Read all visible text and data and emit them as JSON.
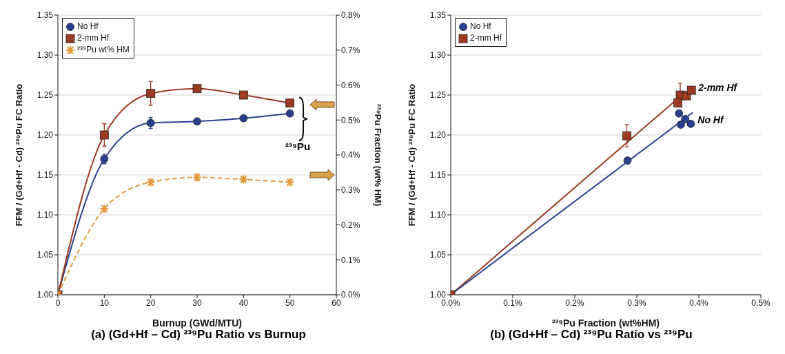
{
  "chart_data": [
    {
      "type": "line",
      "title": "(a)  (Gd+Hf – Cd) ²³⁹Pu Ratio vs Burnup",
      "xlabel": "Burnup (GWd/MTU)",
      "ylabel": "FFM / (Gd+Hf - Cd) ²³⁹Pu FC Ratio",
      "y2label": "²³⁹Pu Fraction (wt% HM)",
      "xlim": [
        0,
        60
      ],
      "xticks": [
        0,
        10,
        20,
        30,
        40,
        50,
        60
      ],
      "ylim": [
        1,
        1.35
      ],
      "yticks": [
        {
          "value": 1,
          "label": "1.00"
        },
        {
          "value": 1.05,
          "label": "1.05"
        },
        {
          "value": 1.1,
          "label": "1.10"
        },
        {
          "value": 1.15,
          "label": "1.15"
        },
        {
          "value": 1.2,
          "label": "1.20"
        },
        {
          "value": 1.25,
          "label": "1.25"
        },
        {
          "value": 1.3,
          "label": "1.30"
        },
        {
          "value": 1.35,
          "label": "1.35"
        }
      ],
      "y2lim": [
        0,
        0.8
      ],
      "y2ticks": [
        {
          "value": 0,
          "label": "0.0%"
        },
        {
          "value": 0.1,
          "label": "0.1%"
        },
        {
          "value": 0.2,
          "label": "0.2%"
        },
        {
          "value": 0.3,
          "label": "0.3%"
        },
        {
          "value": 0.4,
          "label": "0.4%"
        },
        {
          "value": 0.5,
          "label": "0.5%"
        },
        {
          "value": 0.6,
          "label": "0.6%"
        },
        {
          "value": 0.7,
          "label": "0.7%"
        },
        {
          "value": 0.8,
          "label": "0.8%"
        }
      ],
      "grid": "y",
      "legend": "top left",
      "annotations": [
        "²³⁹Pu"
      ],
      "series": [
        {
          "name": "No Hf",
          "color": "#2b3f8f",
          "marker": "circle",
          "x": [
            0,
            10,
            20,
            30,
            40,
            50
          ],
          "values": [
            1.0,
            1.17,
            1.215,
            1.217,
            1.221,
            1.227
          ],
          "errors": [
            null,
            0.006,
            0.007,
            null,
            null,
            null
          ]
        },
        {
          "name": "2-mm Hf",
          "color": "#9c3a22",
          "marker": "square",
          "x": [
            0,
            10,
            20,
            30,
            40,
            50
          ],
          "values": [
            1.0,
            1.2,
            1.252,
            1.258,
            1.25,
            1.24
          ],
          "errors": [
            null,
            0.014,
            0.015,
            null,
            null,
            null
          ]
        },
        {
          "name": "²³⁹Pu wt% HM",
          "color": "#e39a3c",
          "marker": "cross",
          "line_style": "dashed",
          "axis": "y2",
          "x": [
            0,
            10,
            20,
            30,
            40,
            50
          ],
          "values": [
            0,
            0.246,
            0.322,
            0.336,
            0.33,
            0.322
          ]
        }
      ]
    },
    {
      "type": "scatter",
      "title": "(b)  (Gd+Hf – Cd) ²³⁹Pu Ratio vs ²³⁹Pu",
      "xlabel": "²³⁹Pu Fraction (wt%HM)",
      "ylabel": "FFM / (Gd+Hf - Cd) ²³⁹Pu FC Ratio",
      "xlim": [
        0,
        0.5
      ],
      "xticks": [
        {
          "value": 0,
          "label": "0.0%"
        },
        {
          "value": 0.1,
          "label": "0.1%"
        },
        {
          "value": 0.2,
          "label": "0.2%"
        },
        {
          "value": 0.3,
          "label": "0.3%"
        },
        {
          "value": 0.4,
          "label": "0.4%"
        },
        {
          "value": 0.5,
          "label": "0.5%"
        }
      ],
      "ylim": [
        1,
        1.35
      ],
      "yticks": [
        {
          "value": 1,
          "label": "1.00"
        },
        {
          "value": 1.05,
          "label": "1.05"
        },
        {
          "value": 1.1,
          "label": "1.10"
        },
        {
          "value": 1.15,
          "label": "1.15"
        },
        {
          "value": 1.2,
          "label": "1.20"
        },
        {
          "value": 1.25,
          "label": "1.25"
        },
        {
          "value": 1.3,
          "label": "1.30"
        },
        {
          "value": 1.35,
          "label": "1.35"
        }
      ],
      "grid": "y",
      "legend": "top left",
      "annotations": [
        "2-mm Hf",
        "No Hf"
      ],
      "series": [
        {
          "type": "line",
          "color": "#9c3a22",
          "marker": "none",
          "x": [
            0,
            0.38
          ],
          "values": [
            1.0,
            1.255
          ]
        },
        {
          "type": "line",
          "color": "#2b3f8f",
          "marker": "none",
          "x": [
            0,
            0.39
          ],
          "values": [
            1.0,
            1.228
          ]
        },
        {
          "name": "No Hf",
          "color": "#2b3f8f",
          "marker": "circle",
          "x": [
            0.285,
            0.371,
            0.368,
            0.378,
            0.387
          ],
          "values": [
            1.168,
            1.213,
            1.227,
            1.22,
            1.214
          ]
        },
        {
          "name": "2-mm Hf",
          "color": "#9c3a22",
          "marker": "square",
          "x": [
            0,
            0.284,
            0.37,
            0.366,
            0.38,
            0.388
          ],
          "values": [
            1.0,
            1.199,
            1.25,
            1.24,
            1.249,
            1.256
          ],
          "errors": [
            null,
            0.014,
            0.015,
            null,
            null,
            null
          ]
        }
      ]
    }
  ]
}
